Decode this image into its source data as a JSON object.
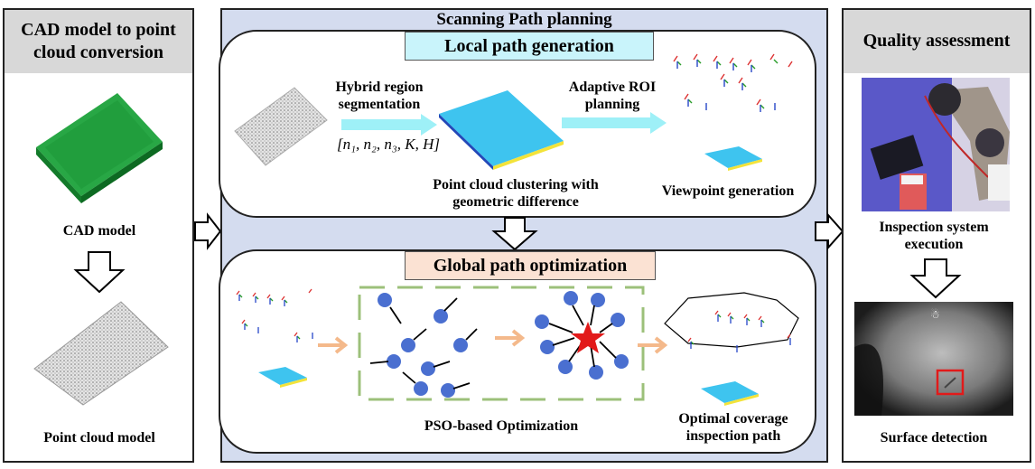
{
  "left_panel": {
    "title": "CAD model to point cloud conversion",
    "cad_label": "CAD model",
    "pc_label": "Point cloud model"
  },
  "center_panel": {
    "title": "Scanning Path planning",
    "local": {
      "title": "Local path generation",
      "seg_label": "Hybrid region segmentation",
      "params": "[n₁, n₂, n₃, K, H]",
      "cluster_label": "Point cloud clustering with geometric difference",
      "roi_label": "Adaptive ROI planning",
      "viewpoint_label": "Viewpoint generation"
    },
    "global": {
      "title": "Global path optimization",
      "pso_label": "PSO-based Optimization",
      "optimal_label": "Optimal coverage inspection path"
    }
  },
  "right_panel": {
    "title": "Quality assessment",
    "exec_label": "Inspection system execution",
    "detect_label": "Surface detection"
  },
  "colors": {
    "header_gray": "#d8d8d8",
    "center_bg": "#d4dcef",
    "local_tag": "#c9f4fb",
    "global_tag": "#fbe2d3",
    "cad_green": "#1e9a3a",
    "pso_dot": "#4a6fd0",
    "star": "#e21a1a",
    "dashed_green": "#9cc07a",
    "cyan_arrow": "#9ef0f7",
    "orange_arrow": "#f4b98b"
  }
}
